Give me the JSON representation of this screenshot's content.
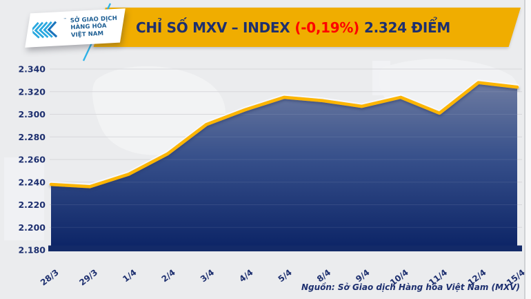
{
  "header": {
    "logo": {
      "line1": "SỞ GIAO DỊCH",
      "line2": "HÀNG HÓA",
      "line3": "VIỆT NAM",
      "trademark": "™"
    },
    "title": {
      "prefix": "CHỈ SỐ MXV – INDEX",
      "change": "(-0,19%)",
      "suffix": "2.324 ĐIỂM"
    }
  },
  "chart_data": {
    "type": "area",
    "title": "CHỈ SỐ MXV – INDEX (-0,19%) 2.324 ĐIỂM",
    "x": [
      "28/3",
      "29/3",
      "1/4",
      "2/4",
      "3/4",
      "4/4",
      "5/4",
      "8/4",
      "9/4",
      "10/4",
      "11/4",
      "12/4",
      "15/4"
    ],
    "values": [
      2238,
      2236,
      2247,
      2265,
      2291,
      2304,
      2315,
      2312,
      2307,
      2315,
      2301,
      2328,
      2324
    ],
    "y_ticks": [
      "2.340",
      "2.320",
      "2.300",
      "2.280",
      "2.260",
      "2.240",
      "2.220",
      "2.200",
      "2.180"
    ],
    "ylim": [
      2180,
      2340
    ],
    "xlabel": "",
    "ylabel": "",
    "grid": "horizontal",
    "legend": "none",
    "line_color": "#fcb500",
    "line_halo_color": "#ffffff",
    "fill_top": "#6d7ba1",
    "fill_mid": "#37508b",
    "fill_bottom": "#0c2466",
    "baseline_color": "#132a68"
  },
  "footer": {
    "source": "Nguồn: Sở Giao dịch Hàng hóa Việt Nam (MXV)"
  },
  "colors": {
    "background": "#ebecee",
    "banner_gold": "#f0ad00",
    "title_navy": "#1d2f6f",
    "change_red": "#fe0000",
    "axis_navy": "#1d2f6f",
    "logo_blue": "#1d5e93",
    "logo_cyan": "#29a8df",
    "logo_deep_blue": "#1b74bc"
  }
}
